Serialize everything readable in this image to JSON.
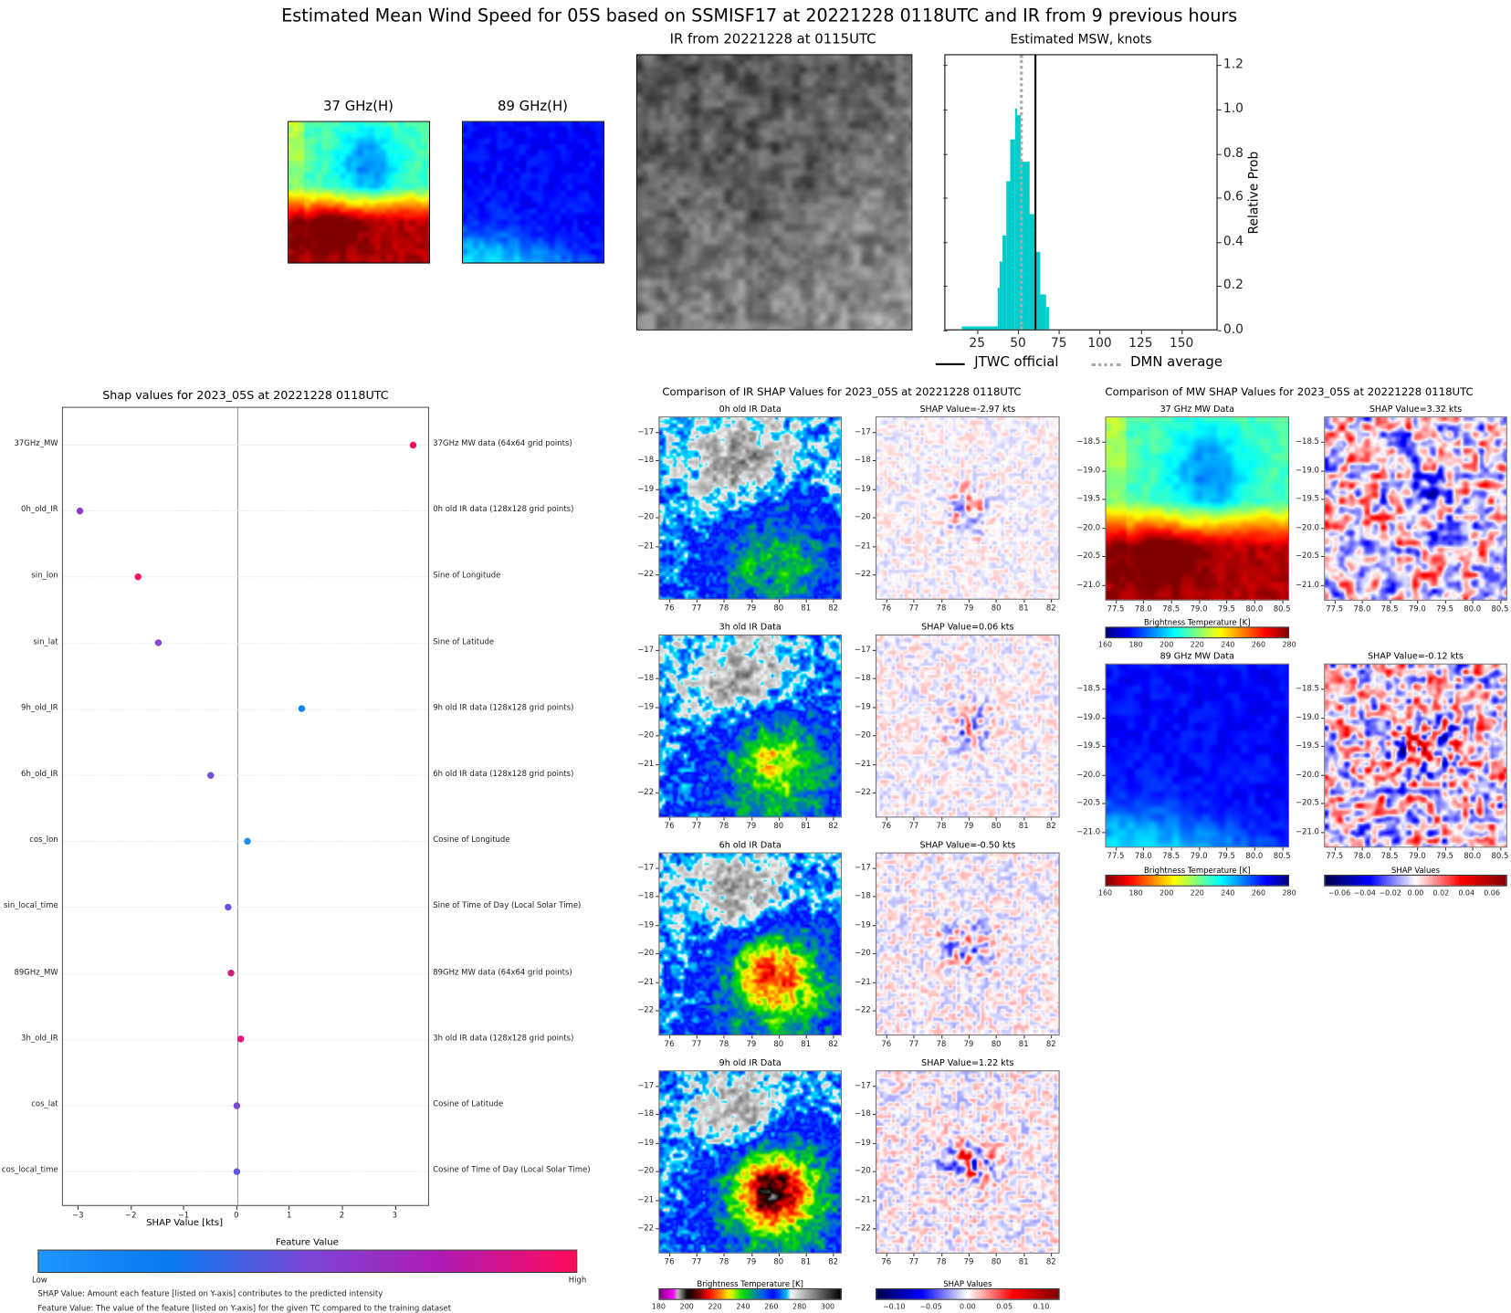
{
  "title": "Estimated Mean Wind Speed for 05S based on SSMISF17 at 20221228 0118UTC and IR from 9 previous hours",
  "top": {
    "mw37_title": "37 GHz(H)",
    "mw89_title": "89 GHz(H)",
    "ir_title": "IR from 20221228 at 0115UTC"
  },
  "chart_data": [
    {
      "type": "bar",
      "title": "Estimated MSW, knots",
      "ylabel": "Relative Prob",
      "xlabel": "",
      "xlim": [
        5,
        172
      ],
      "ylim": [
        0,
        1.25
      ],
      "xticks": [
        "25",
        "50",
        "75",
        "100",
        "125",
        "150"
      ],
      "xtick_values": [
        25,
        50,
        75,
        100,
        125,
        150
      ],
      "yticks": [
        "0.0",
        "0.2",
        "0.4",
        "0.6",
        "0.8",
        "1.0",
        "1.2"
      ],
      "ytick_values": [
        0,
        0.2,
        0.4,
        0.6,
        0.8,
        1.0,
        1.2
      ],
      "bar_color": "#00cccc",
      "bins": [
        {
          "from": 15,
          "to": 37,
          "value": 0.015
        },
        {
          "from": 37,
          "to": 38.1,
          "value": 0.19
        },
        {
          "from": 38.1,
          "to": 39.8,
          "value": 0.305
        },
        {
          "from": 39.8,
          "to": 42.1,
          "value": 0.425
        },
        {
          "from": 42.1,
          "to": 44.9,
          "value": 0.67
        },
        {
          "from": 44.9,
          "to": 47.4,
          "value": 0.86
        },
        {
          "from": 47.4,
          "to": 48.7,
          "value": 1.0
        },
        {
          "from": 48.7,
          "to": 51,
          "value": 0.968
        },
        {
          "from": 51,
          "to": 56.2,
          "value": 0.76
        },
        {
          "from": 56.2,
          "to": 60,
          "value": 0.52
        },
        {
          "from": 60,
          "to": 62.5,
          "value": 0.35
        },
        {
          "from": 62.5,
          "to": 66.5,
          "value": 0.16
        },
        {
          "from": 66.5,
          "to": 68,
          "value": 0.1
        }
      ],
      "jtwc_official": 60,
      "dmn_average": 51.3,
      "legend": {
        "jtwc": "JTWC official",
        "dmn": "DMN average",
        "placement": "bottom"
      }
    },
    {
      "type": "scatter",
      "title": "Shap values for 2023_05S at 20221228 0118UTC",
      "xlabel": "SHAP Value [kts]",
      "xlim": [
        -3.3,
        3.65
      ],
      "xticks": [
        "−3",
        "−2",
        "−1",
        "0",
        "1",
        "2",
        "3"
      ],
      "xtick_values": [
        -3,
        -2,
        -1,
        0,
        1,
        2,
        3
      ],
      "features": [
        {
          "name": "37GHz_MW",
          "desc": "37GHz MW data (64x64 grid points)",
          "value": 3.32,
          "color": "#ff0a5a"
        },
        {
          "name": "0h_old_IR",
          "desc": "0h old IR data (128x128 grid points)",
          "value": -2.97,
          "color": "#8c3cc8"
        },
        {
          "name": "sin_lon",
          "desc": "Sine of Longitude",
          "value": -1.88,
          "color": "#f51462"
        },
        {
          "name": "sin_lat",
          "desc": "Sine of Latitude",
          "value": -1.5,
          "color": "#8a46cf"
        },
        {
          "name": "9h_old_IR",
          "desc": "9h old IR data (128x128 grid points)",
          "value": 1.22,
          "color": "#0a82f0"
        },
        {
          "name": "6h_old_IR",
          "desc": "6h old IR data (128x128 grid points)",
          "value": -0.5,
          "color": "#7450d8"
        },
        {
          "name": "cos_lon",
          "desc": "Cosine of Longitude",
          "value": 0.2,
          "color": "#1a8ff0"
        },
        {
          "name": "sin_local_time",
          "desc": "Sine of Time of Day (Local Solar Time)",
          "value": -0.17,
          "color": "#7050d8"
        },
        {
          "name": "89GHz_MW",
          "desc": "89GHz MW data (64x64 grid points)",
          "value": -0.12,
          "color": "#d21a80"
        },
        {
          "name": "3h_old_IR",
          "desc": "3h old IR data (128x128 grid points)",
          "value": 0.06,
          "color": "#e8107a"
        },
        {
          "name": "cos_lat",
          "desc": "Cosine of Latitude",
          "value": 0.0,
          "color": "#7a48d8"
        },
        {
          "name": "cos_local_time",
          "desc": "Cosine of Time of Day (Local Solar Time)",
          "value": 0.0,
          "color": "#5a58e0"
        }
      ],
      "colorbar": {
        "title": "Feature Value",
        "low": "Low",
        "high": "High",
        "colors": [
          "#1e96ff",
          "#0a78f0",
          "#7a46d6",
          "#b01ab4",
          "#ff0a5a"
        ]
      },
      "notes": [
        "SHAP Value: Amount each feature [listed on Y-axis] contributes to the predicted intensity",
        "Feature Value: The value of the feature [listed on Y-axis] for the given TC compared to the training dataset"
      ]
    }
  ],
  "ir_comparison": {
    "title": "Comparison of IR SHAP Values for 2023_05S at 20221228 0118UTC",
    "xlim": [
      75.61,
      82.31
    ],
    "ylim": [
      -22.88,
      -16.46
    ],
    "xticks": [
      "76",
      "77",
      "78",
      "79",
      "80",
      "81",
      "82"
    ],
    "xtick_values": [
      76,
      77,
      78,
      79,
      80,
      81,
      82
    ],
    "yticks": [
      "−17",
      "−18",
      "−19",
      "−20",
      "−21",
      "−22"
    ],
    "ytick_values": [
      -17,
      -18,
      -19,
      -20,
      -21,
      -22
    ],
    "panels": [
      {
        "data_title": "0h old IR Data",
        "shap_title": "SHAP Value=-2.97 kts"
      },
      {
        "data_title": "3h old IR Data",
        "shap_title": "SHAP Value=0.06 kts"
      },
      {
        "data_title": "6h old IR Data",
        "shap_title": "SHAP Value=-0.50 kts"
      },
      {
        "data_title": "9h old IR Data",
        "shap_title": "SHAP Value=1.22 kts"
      }
    ],
    "bt_colorbar": {
      "title": "Brightness Temperature [K]",
      "range": [
        180,
        310
      ],
      "ticks": [
        "180",
        "200",
        "220",
        "240",
        "260",
        "280",
        "300"
      ],
      "tick_values": [
        180,
        200,
        220,
        240,
        260,
        280,
        300
      ]
    },
    "shap_colorbar": {
      "title": "SHAP Values",
      "range": [
        -0.125,
        0.125
      ],
      "ticks": [
        "−0.10",
        "−0.05",
        "0.00",
        "0.05",
        "0.10"
      ],
      "tick_values": [
        -0.1,
        -0.05,
        0,
        0.05,
        0.1
      ]
    }
  },
  "mw_comparison": {
    "title": "Comparison of MW SHAP Values for 2023_05S at 20221228 0118UTC",
    "xlim": [
      77.31,
      80.63
    ],
    "ylim": [
      -21.27,
      -18.06
    ],
    "xticks": [
      "77.5",
      "78.0",
      "78.5",
      "79.0",
      "79.5",
      "80.0",
      "80.5"
    ],
    "xtick_values": [
      77.5,
      78.0,
      78.5,
      79.0,
      79.5,
      80.0,
      80.5
    ],
    "yticks": [
      "−18.5",
      "−19.0",
      "−19.5",
      "−20.0",
      "−20.5",
      "−21.0"
    ],
    "ytick_values": [
      -18.5,
      -19.0,
      -19.5,
      -20.0,
      -20.5,
      -21.0
    ],
    "panels": [
      {
        "data_title": "37 GHz MW Data",
        "shap_title": "SHAP Value=3.32 kts"
      },
      {
        "data_title": "89 GHz MW Data",
        "shap_title": "SHAP Value=-0.12 kts"
      }
    ],
    "bt37_colorbar": {
      "title": "Brightness Temperature [K]",
      "range": [
        160,
        280
      ],
      "ticks": [
        "160",
        "180",
        "200",
        "220",
        "240",
        "260",
        "280"
      ],
      "tick_values": [
        160,
        180,
        200,
        220,
        240,
        260,
        280
      ]
    },
    "bt89_colorbar": {
      "title": "Brightness Temperature [K]",
      "range": [
        160,
        280
      ],
      "ticks": [
        "160",
        "180",
        "200",
        "220",
        "240",
        "260",
        "280"
      ],
      "tick_values": [
        160,
        180,
        200,
        220,
        240,
        260,
        280
      ]
    },
    "shap_colorbar": {
      "title": "SHAP Values",
      "range": [
        -0.072,
        0.072
      ],
      "ticks": [
        "−0.06",
        "−0.04",
        "−0.02",
        "0.00",
        "0.02",
        "0.04",
        "0.06"
      ],
      "tick_values": [
        -0.06,
        -0.04,
        -0.02,
        0,
        0.02,
        0.04,
        0.06
      ]
    }
  }
}
